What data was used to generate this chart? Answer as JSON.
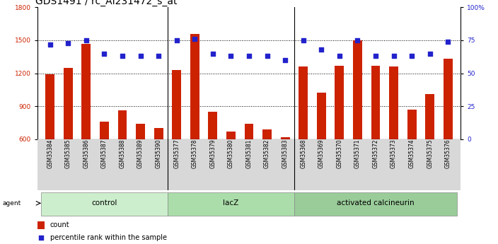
{
  "title": "GDS1491 / rc_AI231472_s_at",
  "samples": [
    "GSM35384",
    "GSM35385",
    "GSM35386",
    "GSM35387",
    "GSM35388",
    "GSM35389",
    "GSM35390",
    "GSM35377",
    "GSM35378",
    "GSM35379",
    "GSM35380",
    "GSM35381",
    "GSM35382",
    "GSM35383",
    "GSM35368",
    "GSM35369",
    "GSM35370",
    "GSM35371",
    "GSM35372",
    "GSM35373",
    "GSM35374",
    "GSM35375",
    "GSM35376"
  ],
  "counts": [
    1190,
    1250,
    1470,
    760,
    860,
    740,
    700,
    1230,
    1560,
    850,
    670,
    740,
    690,
    620,
    1260,
    1020,
    1270,
    1500,
    1270,
    1260,
    870,
    1010,
    1330
  ],
  "percentiles": [
    72,
    73,
    75,
    65,
    63,
    63,
    63,
    75,
    76,
    65,
    63,
    63,
    63,
    60,
    75,
    68,
    63,
    75,
    63,
    63,
    63,
    65,
    74
  ],
  "groups": [
    {
      "label": "control",
      "start": 0,
      "end": 7,
      "color": "#cceecc"
    },
    {
      "label": "lacZ",
      "start": 7,
      "end": 14,
      "color": "#aaddaa"
    },
    {
      "label": "activated calcineurin",
      "start": 14,
      "end": 23,
      "color": "#99cc99"
    }
  ],
  "bar_color": "#cc2200",
  "dot_color": "#2222cc",
  "ylim_left": [
    600,
    1800
  ],
  "ylim_right": [
    0,
    100
  ],
  "yticks_left": [
    600,
    900,
    1200,
    1500,
    1800
  ],
  "yticks_right": [
    0,
    25,
    50,
    75,
    100
  ],
  "ylabel_left_color": "#cc2200",
  "ylabel_right_color": "#2222cc",
  "title_fontsize": 10,
  "tick_fontsize": 6.5,
  "label_fontsize": 7.5,
  "xlabel_fontsize": 5.5,
  "group_bg_color": "#d8d8d8"
}
